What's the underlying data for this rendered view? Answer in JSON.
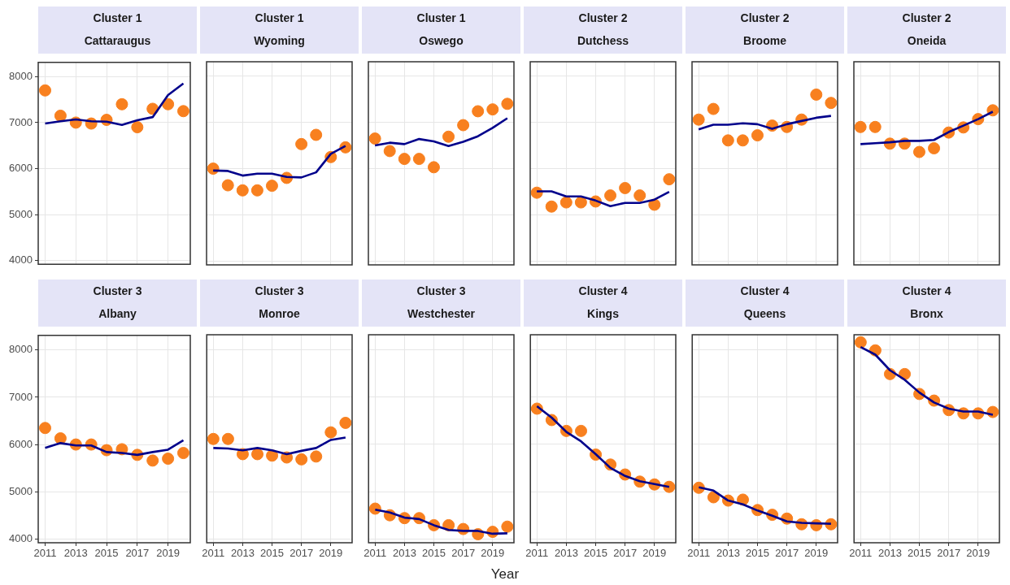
{
  "chart_data": [
    {
      "type": "scatter",
      "title": "Cluster 1",
      "subtitle": "Cattaraugus",
      "x": [
        2011,
        2012,
        2013,
        2014,
        2015,
        2016,
        2017,
        2018,
        2019,
        2020
      ],
      "xlim": [
        2010.55,
        2020.45
      ],
      "ylim": [
        3920,
        8310
      ],
      "xticks": [
        2011,
        2013,
        2015,
        2017,
        2019
      ],
      "yticks": [
        4000,
        5000,
        6000,
        7000,
        8000
      ],
      "grid": true,
      "tick_labels": "y",
      "series": [
        {
          "type": "scatter",
          "color": "#f8801f",
          "marker": "circle",
          "values": [
            7700,
            7150,
            7000,
            6980,
            7060,
            7400,
            6900,
            7300,
            7400,
            7250
          ]
        },
        {
          "type": "line",
          "color": "#00008b",
          "marker": "none",
          "values": [
            6980,
            7030,
            7070,
            7030,
            7020,
            6950,
            7050,
            7120,
            7600,
            7850
          ]
        }
      ]
    },
    {
      "type": "scatter",
      "title": "Cluster 1",
      "subtitle": "Wyoming",
      "x": [
        2011,
        2012,
        2013,
        2014,
        2015,
        2016,
        2017,
        2018,
        2019,
        2020
      ],
      "xlim": [
        2010.55,
        2020.45
      ],
      "ylim": [
        3920,
        8310
      ],
      "xticks": [
        2011,
        2013,
        2015,
        2017,
        2019
      ],
      "yticks": [
        4000,
        5000,
        6000,
        7000,
        8000
      ],
      "grid": true,
      "tick_labels": false,
      "series": [
        {
          "type": "scatter",
          "color": "#f8801f",
          "marker": "circle",
          "values": [
            6000,
            5640,
            5530,
            5530,
            5630,
            5800,
            6530,
            6730,
            6250,
            6460
          ]
        },
        {
          "type": "line",
          "color": "#00008b",
          "marker": "none",
          "values": [
            5960,
            5950,
            5850,
            5890,
            5890,
            5820,
            5810,
            5920,
            6320,
            6490
          ]
        }
      ]
    },
    {
      "type": "scatter",
      "title": "Cluster 1",
      "subtitle": "Oswego",
      "x": [
        2011,
        2012,
        2013,
        2014,
        2015,
        2016,
        2017,
        2018,
        2019,
        2020
      ],
      "xlim": [
        2010.55,
        2020.45
      ],
      "ylim": [
        3920,
        8310
      ],
      "xticks": [
        2011,
        2013,
        2015,
        2017,
        2019
      ],
      "yticks": [
        4000,
        5000,
        6000,
        7000,
        8000
      ],
      "grid": true,
      "tick_labels": false,
      "series": [
        {
          "type": "scatter",
          "color": "#f8801f",
          "marker": "circle",
          "values": [
            6650,
            6380,
            6210,
            6210,
            6030,
            6690,
            6940,
            7240,
            7280,
            7400
          ]
        },
        {
          "type": "line",
          "color": "#00008b",
          "marker": "none",
          "values": [
            6500,
            6560,
            6530,
            6640,
            6590,
            6490,
            6580,
            6700,
            6880,
            7090
          ]
        }
      ]
    },
    {
      "type": "scatter",
      "title": "Cluster 2",
      "subtitle": "Dutchess",
      "x": [
        2011,
        2012,
        2013,
        2014,
        2015,
        2016,
        2017,
        2018,
        2019,
        2020
      ],
      "xlim": [
        2010.55,
        2020.45
      ],
      "ylim": [
        3920,
        8310
      ],
      "xticks": [
        2011,
        2013,
        2015,
        2017,
        2019
      ],
      "yticks": [
        4000,
        5000,
        6000,
        7000,
        8000
      ],
      "grid": true,
      "tick_labels": false,
      "series": [
        {
          "type": "scatter",
          "color": "#f8801f",
          "marker": "circle",
          "values": [
            5480,
            5180,
            5270,
            5270,
            5290,
            5420,
            5580,
            5420,
            5220,
            5770
          ]
        },
        {
          "type": "line",
          "color": "#00008b",
          "marker": "none",
          "values": [
            5510,
            5510,
            5400,
            5400,
            5310,
            5190,
            5260,
            5260,
            5330,
            5500
          ]
        }
      ]
    },
    {
      "type": "scatter",
      "title": "Cluster 2",
      "subtitle": "Broome",
      "x": [
        2011,
        2012,
        2013,
        2014,
        2015,
        2016,
        2017,
        2018,
        2019,
        2020
      ],
      "xlim": [
        2010.55,
        2020.45
      ],
      "ylim": [
        3920,
        8310
      ],
      "xticks": [
        2011,
        2013,
        2015,
        2017,
        2019
      ],
      "yticks": [
        4000,
        5000,
        6000,
        7000,
        8000
      ],
      "grid": true,
      "tick_labels": false,
      "series": [
        {
          "type": "scatter",
          "color": "#f8801f",
          "marker": "circle",
          "values": [
            7060,
            7290,
            6610,
            6610,
            6720,
            6930,
            6900,
            7060,
            7600,
            7420
          ]
        },
        {
          "type": "line",
          "color": "#00008b",
          "marker": "none",
          "values": [
            6850,
            6950,
            6950,
            6980,
            6960,
            6860,
            6960,
            7030,
            7100,
            7140
          ]
        }
      ]
    },
    {
      "type": "scatter",
      "title": "Cluster 2",
      "subtitle": "Oneida",
      "x": [
        2011,
        2012,
        2013,
        2014,
        2015,
        2016,
        2017,
        2018,
        2019,
        2020
      ],
      "xlim": [
        2010.55,
        2020.45
      ],
      "ylim": [
        3920,
        8310
      ],
      "xticks": [
        2011,
        2013,
        2015,
        2017,
        2019
      ],
      "yticks": [
        4000,
        5000,
        6000,
        7000,
        8000
      ],
      "grid": true,
      "tick_labels": false,
      "series": [
        {
          "type": "scatter",
          "color": "#f8801f",
          "marker": "circle",
          "values": [
            6900,
            6900,
            6540,
            6540,
            6360,
            6440,
            6780,
            6890,
            7070,
            7260
          ]
        },
        {
          "type": "line",
          "color": "#00008b",
          "marker": "none",
          "values": [
            6530,
            6550,
            6570,
            6600,
            6600,
            6620,
            6790,
            6930,
            7070,
            7230
          ]
        }
      ]
    },
    {
      "type": "scatter",
      "title": "Cluster 3",
      "subtitle": "Albany",
      "x": [
        2011,
        2012,
        2013,
        2014,
        2015,
        2016,
        2017,
        2018,
        2019,
        2020
      ],
      "xlim": [
        2010.55,
        2020.45
      ],
      "ylim": [
        3920,
        8310
      ],
      "xticks": [
        2011,
        2013,
        2015,
        2017,
        2019
      ],
      "yticks": [
        4000,
        5000,
        6000,
        7000,
        8000
      ],
      "grid": true,
      "series": [
        {
          "type": "scatter",
          "color": "#f8801f",
          "marker": "circle",
          "values": [
            6350,
            6130,
            6000,
            6000,
            5880,
            5900,
            5780,
            5660,
            5700,
            5820
          ]
        },
        {
          "type": "line",
          "color": "#00008b",
          "marker": "none",
          "values": [
            5930,
            6030,
            5980,
            5980,
            5840,
            5820,
            5780,
            5840,
            5890,
            6090
          ]
        }
      ]
    },
    {
      "type": "scatter",
      "title": "Cluster 3",
      "subtitle": "Monroe",
      "x": [
        2011,
        2012,
        2013,
        2014,
        2015,
        2016,
        2017,
        2018,
        2019,
        2020
      ],
      "xlim": [
        2010.55,
        2020.45
      ],
      "ylim": [
        3920,
        8310
      ],
      "xticks": [
        2011,
        2013,
        2015,
        2017,
        2019
      ],
      "yticks": [
        4000,
        5000,
        6000,
        7000,
        8000
      ],
      "grid": true,
      "tick_labels": "x",
      "series": [
        {
          "type": "scatter",
          "color": "#f8801f",
          "marker": "circle",
          "values": [
            6110,
            6110,
            5790,
            5790,
            5760,
            5720,
            5680,
            5740,
            6250,
            6450
          ]
        },
        {
          "type": "line",
          "color": "#00008b",
          "marker": "none",
          "values": [
            5920,
            5910,
            5870,
            5920,
            5870,
            5790,
            5860,
            5920,
            6090,
            6140
          ]
        }
      ]
    },
    {
      "type": "scatter",
      "title": "Cluster 3",
      "subtitle": "Westchester",
      "x": [
        2011,
        2012,
        2013,
        2014,
        2015,
        2016,
        2017,
        2018,
        2019,
        2020
      ],
      "xlim": [
        2010.55,
        2020.45
      ],
      "ylim": [
        3920,
        8310
      ],
      "xticks": [
        2011,
        2013,
        2015,
        2017,
        2019
      ],
      "yticks": [
        4000,
        5000,
        6000,
        7000,
        8000
      ],
      "grid": true,
      "tick_labels": "x",
      "series": [
        {
          "type": "scatter",
          "color": "#f8801f",
          "marker": "circle",
          "values": [
            4640,
            4500,
            4440,
            4440,
            4290,
            4290,
            4210,
            4100,
            4150,
            4260
          ]
        },
        {
          "type": "line",
          "color": "#00008b",
          "marker": "none",
          "values": [
            4620,
            4560,
            4450,
            4420,
            4290,
            4190,
            4170,
            4170,
            4110,
            4120
          ]
        }
      ]
    },
    {
      "type": "scatter",
      "title": "Cluster 4",
      "subtitle": "Kings",
      "xlabel": "Year",
      "x": [
        2011,
        2012,
        2013,
        2014,
        2015,
        2016,
        2017,
        2018,
        2019,
        2020
      ],
      "xlim": [
        2010.55,
        2020.45
      ],
      "ylim": [
        3920,
        8310
      ],
      "xticks": [
        2011,
        2013,
        2015,
        2017,
        2019
      ],
      "yticks": [
        4000,
        5000,
        6000,
        7000,
        8000
      ],
      "grid": true,
      "tick_labels": "x",
      "series": [
        {
          "type": "scatter",
          "color": "#f8801f",
          "marker": "circle",
          "values": [
            6750,
            6510,
            6280,
            6280,
            5780,
            5570,
            5360,
            5210,
            5150,
            5100
          ]
        },
        {
          "type": "line",
          "color": "#00008b",
          "marker": "none",
          "values": [
            6800,
            6560,
            6260,
            6060,
            5790,
            5500,
            5330,
            5220,
            5160,
            5100
          ]
        }
      ]
    },
    {
      "type": "scatter",
      "title": "Cluster 4",
      "subtitle": "Queens",
      "x": [
        2011,
        2012,
        2013,
        2014,
        2015,
        2016,
        2017,
        2018,
        2019,
        2020
      ],
      "xlim": [
        2010.55,
        2020.45
      ],
      "ylim": [
        3920,
        8310
      ],
      "xticks": [
        2011,
        2013,
        2015,
        2017,
        2019
      ],
      "yticks": [
        4000,
        5000,
        6000,
        7000,
        8000
      ],
      "grid": true,
      "tick_labels": "x",
      "series": [
        {
          "type": "scatter",
          "color": "#f8801f",
          "marker": "circle",
          "values": [
            5080,
            4880,
            4810,
            4830,
            4610,
            4510,
            4430,
            4310,
            4290,
            4310
          ]
        },
        {
          "type": "line",
          "color": "#00008b",
          "marker": "none",
          "values": [
            5090,
            5020,
            4810,
            4730,
            4600,
            4490,
            4370,
            4340,
            4330,
            4320
          ]
        }
      ]
    },
    {
      "type": "scatter",
      "title": "Cluster 4",
      "subtitle": "Bronx",
      "x": [
        2011,
        2012,
        2013,
        2014,
        2015,
        2016,
        2017,
        2018,
        2019,
        2020
      ],
      "xlim": [
        2010.55,
        2020.45
      ],
      "ylim": [
        3920,
        8310
      ],
      "xticks": [
        2011,
        2013,
        2015,
        2017,
        2019
      ],
      "yticks": [
        4000,
        5000,
        6000,
        7000,
        8000
      ],
      "grid": true,
      "tick_labels": "x",
      "series": [
        {
          "type": "scatter",
          "color": "#f8801f",
          "marker": "circle",
          "values": [
            8150,
            7980,
            7480,
            7480,
            7060,
            6920,
            6720,
            6650,
            6650,
            6680
          ]
        },
        {
          "type": "line",
          "color": "#00008b",
          "marker": "none",
          "values": [
            8050,
            7890,
            7560,
            7360,
            7090,
            6880,
            6750,
            6690,
            6690,
            6620
          ]
        }
      ]
    }
  ]
}
